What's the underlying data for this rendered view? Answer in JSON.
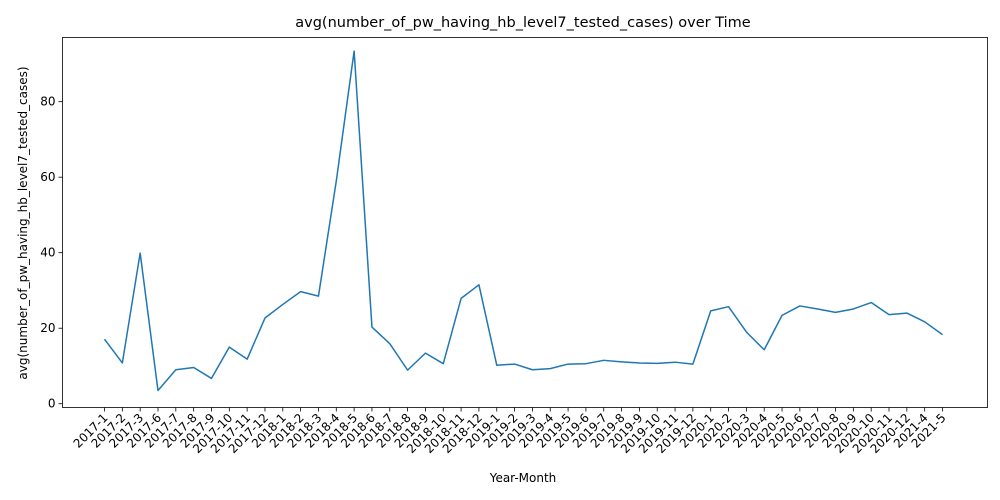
{
  "chart_data": {
    "type": "line",
    "title": "avg(number_of_pw_having_hb_level7_tested_cases) over Time",
    "xlabel": "Year-Month",
    "ylabel": "avg(number_of_pw_having_hb_level7_tested_cases)",
    "ylim": [
      -1,
      97
    ],
    "yticks": [
      0,
      20,
      40,
      60,
      80
    ],
    "grid": false,
    "line_color": "#1f77b4",
    "categories": [
      "2017-1",
      "2017-2",
      "2017-3",
      "2017-6",
      "2017-7",
      "2017-8",
      "2017-9",
      "2017-10",
      "2017-11",
      "2017-12",
      "2018-1",
      "2018-2",
      "2018-3",
      "2018-4",
      "2018-5",
      "2018-6",
      "2018-7",
      "2018-8",
      "2018-9",
      "2018-10",
      "2018-11",
      "2018-12",
      "2019-1",
      "2019-2",
      "2019-3",
      "2019-4",
      "2019-5",
      "2019-6",
      "2019-7",
      "2019-8",
      "2019-9",
      "2019-10",
      "2019-11",
      "2019-12",
      "2020-1",
      "2020-2",
      "2020-3",
      "2020-4",
      "2020-5",
      "2020-6",
      "2020-7",
      "2020-8",
      "2020-9",
      "2020-10",
      "2020-11",
      "2020-12",
      "2021-4",
      "2021-5"
    ],
    "series": [
      {
        "name": "",
        "values": [
          17.1,
          10.8,
          39.9,
          3.5,
          9.0,
          9.6,
          6.7,
          15.0,
          11.8,
          22.7,
          26.3,
          29.7,
          28.5,
          59.0,
          93.4,
          20.3,
          15.9,
          8.9,
          13.4,
          10.6,
          27.9,
          31.5,
          10.2,
          10.5,
          9.0,
          9.3,
          10.5,
          10.6,
          11.5,
          11.1,
          10.8,
          10.7,
          11.0,
          10.5,
          24.6,
          25.7,
          19.0,
          14.3,
          23.4,
          25.9,
          25.1,
          24.2,
          25.1,
          26.8,
          23.6,
          24.0,
          21.7,
          18.3
        ]
      }
    ]
  }
}
